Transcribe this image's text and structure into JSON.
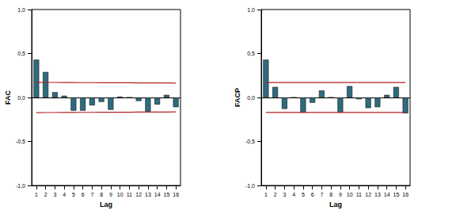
{
  "chart_data": [
    {
      "type": "bar",
      "y_label": "FAC",
      "x_label": "Lag",
      "categories": [
        "1",
        "2",
        "3",
        "4",
        "5",
        "6",
        "7",
        "8",
        "9",
        "10",
        "11",
        "12",
        "13",
        "14",
        "15",
        "16"
      ],
      "values": [
        0.43,
        0.29,
        0.06,
        0.02,
        -0.15,
        -0.15,
        -0.09,
        -0.05,
        -0.14,
        0.01,
        0.0,
        -0.04,
        -0.16,
        -0.08,
        0.03,
        -0.11
      ],
      "upper_limit": [
        0.172,
        0.171,
        0.171,
        0.17,
        0.17,
        0.169,
        0.169,
        0.168,
        0.168,
        0.167,
        0.167,
        0.166,
        0.166,
        0.165,
        0.165,
        0.164
      ],
      "lower_limit": [
        -0.172,
        -0.171,
        -0.171,
        -0.17,
        -0.17,
        -0.169,
        -0.169,
        -0.168,
        -0.168,
        -0.167,
        -0.167,
        -0.166,
        -0.166,
        -0.165,
        -0.165,
        -0.164
      ],
      "color": "#2e6b7e",
      "limit_color": "#b22222",
      "ylim": [
        -1,
        1
      ],
      "yticks": [
        {
          "value": -1,
          "label": "-1,0"
        },
        {
          "value": -0.5,
          "label": "-0,5"
        },
        {
          "value": 0,
          "label": "0,0"
        },
        {
          "value": 0.5,
          "label": "0,5"
        },
        {
          "value": 1,
          "label": "1,0"
        }
      ],
      "grid": false
    },
    {
      "type": "bar",
      "y_label": "FACP",
      "x_label": "Lag",
      "categories": [
        "1",
        "2",
        "3",
        "4",
        "5",
        "6",
        "7",
        "8",
        "9",
        "10",
        "11",
        "12",
        "13",
        "14",
        "15",
        "16"
      ],
      "values": [
        0.43,
        0.12,
        -0.13,
        0.0,
        -0.17,
        -0.06,
        0.08,
        0.0,
        -0.17,
        0.13,
        -0.02,
        -0.12,
        -0.11,
        0.03,
        0.12,
        -0.18
      ],
      "upper_limit": [
        0.17,
        0.17,
        0.17,
        0.17,
        0.17,
        0.17,
        0.17,
        0.17,
        0.17,
        0.17,
        0.17,
        0.17,
        0.17,
        0.17,
        0.17,
        0.17
      ],
      "lower_limit": [
        -0.17,
        -0.17,
        -0.17,
        -0.17,
        -0.17,
        -0.17,
        -0.17,
        -0.17,
        -0.17,
        -0.17,
        -0.17,
        -0.17,
        -0.17,
        -0.17,
        -0.17,
        -0.17
      ],
      "color": "#2e6b7e",
      "limit_color": "#b22222",
      "ylim": [
        -1,
        1
      ],
      "yticks": [
        {
          "value": -1,
          "label": "-1,0"
        },
        {
          "value": -0.5,
          "label": "-0,5"
        },
        {
          "value": 0,
          "label": "0,0"
        },
        {
          "value": 0.5,
          "label": "0,5"
        },
        {
          "value": 1,
          "label": "1,0"
        }
      ],
      "grid": false
    }
  ]
}
